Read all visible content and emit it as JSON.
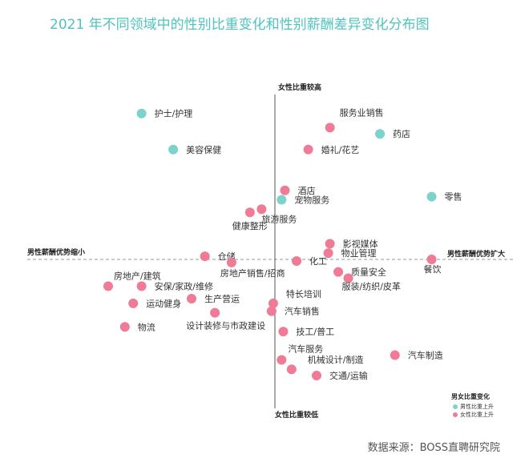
{
  "page": {
    "title": "2021 年不同领域中的性别比重变化和性别薪酬差异变化分布图",
    "source": "数据来源：BOSS直聘研究院"
  },
  "chart_data": {
    "type": "scatter",
    "title": "2021 年不同领域中的性别比重变化和性别薪酬差异变化分布图",
    "axes": {
      "top": "女性比重较高",
      "bottom": "女性比重较低",
      "left": "男性薪酬优势缩小",
      "right": "男性薪酬优势扩大"
    },
    "xlim": [
      -10,
      10
    ],
    "ylim": [
      -10,
      10
    ],
    "grid": false,
    "legend_position": "bottom-right",
    "legend_title": "男女比重变化",
    "colors": {
      "male": "#7dd3cc",
      "female": "#ef7b96"
    },
    "series": [
      {
        "name": "男性比重上升",
        "color": "#7dd3cc",
        "points": [
          {
            "label": "护士/护理",
            "x": -8.0,
            "y": 9.3
          },
          {
            "label": "美容保健",
            "x": -6.1,
            "y": 7.0
          },
          {
            "label": "药店",
            "x": 6.3,
            "y": 8.0
          },
          {
            "label": "零售",
            "x": 9.4,
            "y": 4.0
          },
          {
            "label": "宠物服务",
            "x": 0.4,
            "y": 3.8
          }
        ]
      },
      {
        "name": "女性比重上升",
        "color": "#ef7b96",
        "points": [
          {
            "label": "服务业销售",
            "x": 3.3,
            "y": 8.4
          },
          {
            "label": "婚礼/花艺",
            "x": 2.0,
            "y": 7.0
          },
          {
            "label": "酒店",
            "x": 0.6,
            "y": 4.4
          },
          {
            "label": "旅游服务",
            "x": -0.8,
            "y": 3.2
          },
          {
            "label": "健康整形",
            "x": -1.5,
            "y": 3.0
          },
          {
            "label": "影视媒体",
            "x": 3.3,
            "y": 1.0
          },
          {
            "label": "物业管理",
            "x": 3.2,
            "y": 0.4
          },
          {
            "label": "仓储",
            "x": -4.2,
            "y": 0.2
          },
          {
            "label": "房地产销售/招商",
            "x": -2.6,
            "y": -0.2
          },
          {
            "label": "化工",
            "x": 1.3,
            "y": -0.1
          },
          {
            "label": "餐饮",
            "x": 9.4,
            "y": 0.0
          },
          {
            "label": "质量安全",
            "x": 3.8,
            "y": -0.8
          },
          {
            "label": "服装/纺织/皮革",
            "x": 4.4,
            "y": -1.2
          },
          {
            "label": "房地产/建筑",
            "x": -10.0,
            "y": -1.7
          },
          {
            "label": "安保/家政/维修",
            "x": -8.0,
            "y": -1.7
          },
          {
            "label": "生产营运",
            "x": -5.0,
            "y": -2.5
          },
          {
            "label": "运动健身",
            "x": -8.5,
            "y": -2.8
          },
          {
            "label": "设计装修与市政建设",
            "x": -3.6,
            "y": -3.4
          },
          {
            "label": "特长培训",
            "x": -0.1,
            "y": -2.8
          },
          {
            "label": "汽车销售",
            "x": -0.2,
            "y": -3.3
          },
          {
            "label": "物流",
            "x": -9.0,
            "y": -4.3
          },
          {
            "label": "技工/普工",
            "x": 0.5,
            "y": -4.6
          },
          {
            "label": "汽车服务",
            "x": 0.4,
            "y": -6.4
          },
          {
            "label": "机械设计/制造",
            "x": 1.0,
            "y": -7.0
          },
          {
            "label": "交通/运输",
            "x": 2.5,
            "y": -7.4
          },
          {
            "label": "汽车制造",
            "x": 7.2,
            "y": -6.1
          }
        ]
      }
    ]
  }
}
